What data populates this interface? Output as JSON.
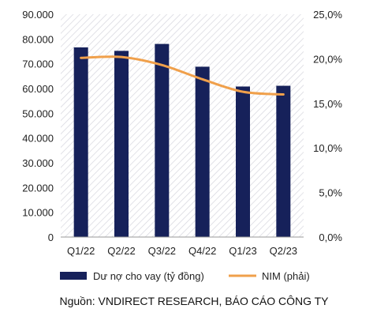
{
  "chart_data": {
    "type": "bar",
    "categories": [
      "Q1/22",
      "Q2/22",
      "Q3/22",
      "Q4/22",
      "Q1/23",
      "Q2/23"
    ],
    "series": [
      {
        "name": "Dư nợ cho vay (tỷ đồng)",
        "type": "bar",
        "axis": "left",
        "color": "#16215a",
        "values": [
          76600,
          75200,
          78000,
          68800,
          60800,
          61100
        ]
      },
      {
        "name": "NIM (phải)",
        "type": "line",
        "axis": "right",
        "color": "#f0a04b",
        "values": [
          20.1,
          20.2,
          19.3,
          17.7,
          16.3,
          16.0
        ]
      }
    ],
    "yaxis_left": {
      "range": [
        0,
        90000
      ],
      "ticks": [
        0,
        10000,
        20000,
        30000,
        40000,
        50000,
        60000,
        70000,
        80000,
        90000
      ],
      "tick_labels": [
        "0",
        "10.000",
        "20.000",
        "30.000",
        "40.000",
        "50.000",
        "60.000",
        "70.000",
        "80.000",
        "90.000"
      ]
    },
    "yaxis_right": {
      "range": [
        0,
        25
      ],
      "ticks": [
        0,
        5,
        10,
        15,
        20,
        25
      ],
      "tick_labels": [
        "0,0%",
        "5,0%",
        "10,0%",
        "15,0%",
        "20,0%",
        "25,0%"
      ]
    },
    "legend": {
      "placement": "bottom",
      "entries": [
        "Dư nợ cho vay (tỷ đồng)",
        "NIM (phải)"
      ]
    },
    "grid": false,
    "background_pattern": "diagonal-hatch"
  },
  "source_note": "Nguồn: VNDIRECT RESEARCH, BÁO CÁO CÔNG TY"
}
